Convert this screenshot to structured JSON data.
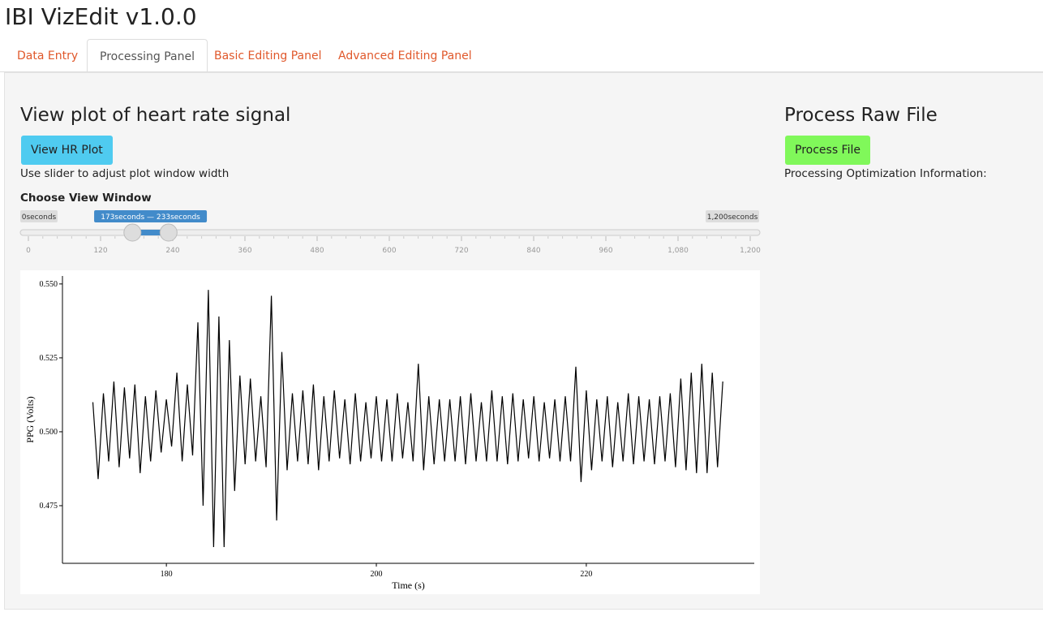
{
  "header": {
    "title": "IBI VizEdit v1.0.0"
  },
  "tabs": {
    "items": [
      "Data Entry",
      "Processing Panel",
      "Basic Editing Panel",
      "Advanced Editing Panel"
    ],
    "active": 1
  },
  "left": {
    "heading": "View plot of heart rate signal",
    "button": "View HR Plot",
    "hint": "Use slider to adjust plot window width"
  },
  "slider": {
    "label": "Choose View Window",
    "min_label": "0seconds",
    "max_label": "1,200seconds",
    "value_label": "173seconds — 233seconds",
    "min": 0,
    "max": 1200,
    "from": 173,
    "to": 233,
    "ticks": [
      0,
      120,
      240,
      360,
      480,
      600,
      720,
      840,
      960,
      {
        "value": 1080,
        "label": "1,080"
      },
      {
        "value": 1200,
        "label": "1,200"
      }
    ]
  },
  "right": {
    "heading": "Process Raw File",
    "button": "Process File",
    "info": "Processing Optimization Information:"
  },
  "chart_data": {
    "type": "line",
    "x_label": "Time (s)",
    "y_label": "PPG (Volts)",
    "color": "#000000",
    "xlim": [
      170.1,
      236
    ],
    "ylim": [
      0.4555,
      0.5527
    ],
    "xticks": [
      180,
      200,
      220
    ],
    "yticks": [
      {
        "value": 0.55,
        "label": "0.550"
      },
      0.525,
      {
        "value": 0.5,
        "label": "0.500"
      },
      0.475
    ],
    "x": [
      173,
      173.5,
      174,
      174.5,
      175,
      175.5,
      176,
      176.5,
      177,
      177.5,
      178,
      178.5,
      179,
      179.5,
      180,
      180.5,
      181,
      181.5,
      182,
      182.5,
      183,
      183.5,
      184,
      184.5,
      185,
      185.5,
      186,
      186.5,
      187,
      187.5,
      188,
      188.5,
      189,
      189.5,
      190,
      190.5,
      191,
      191.5,
      192,
      192.5,
      193,
      193.5,
      194,
      194.5,
      195,
      195.5,
      196,
      196.5,
      197,
      197.5,
      198,
      198.5,
      199,
      199.5,
      200,
      200.5,
      201,
      201.5,
      202,
      202.5,
      203,
      203.5,
      204,
      204.5,
      205,
      205.5,
      206,
      206.5,
      207,
      207.5,
      208,
      208.5,
      209,
      209.5,
      210,
      210.5,
      211,
      211.5,
      212,
      212.5,
      213,
      213.5,
      214,
      214.5,
      215,
      215.5,
      216,
      216.5,
      217,
      217.5,
      218,
      218.5,
      219,
      219.5,
      220,
      220.5,
      221,
      221.5,
      222,
      222.5,
      223,
      223.5,
      224,
      224.5,
      225,
      225.5,
      226,
      226.5,
      227,
      227.5,
      228,
      228.5,
      229,
      229.5,
      230,
      230.5,
      231,
      231.5,
      232,
      232.5,
      233
    ],
    "values": [
      0.51,
      0.484,
      0.513,
      0.49,
      0.517,
      0.488,
      0.515,
      0.491,
      0.516,
      0.486,
      0.512,
      0.49,
      0.514,
      0.493,
      0.511,
      0.495,
      0.52,
      0.49,
      0.516,
      0.492,
      0.537,
      0.475,
      0.548,
      0.461,
      0.539,
      0.461,
      0.531,
      0.48,
      0.519,
      0.489,
      0.518,
      0.49,
      0.512,
      0.488,
      0.546,
      0.47,
      0.527,
      0.487,
      0.513,
      0.49,
      0.514,
      0.489,
      0.516,
      0.487,
      0.512,
      0.49,
      0.514,
      0.491,
      0.511,
      0.489,
      0.513,
      0.49,
      0.51,
      0.491,
      0.512,
      0.49,
      0.511,
      0.49,
      0.513,
      0.491,
      0.51,
      0.49,
      0.523,
      0.487,
      0.512,
      0.489,
      0.511,
      0.49,
      0.511,
      0.49,
      0.512,
      0.489,
      0.513,
      0.49,
      0.51,
      0.49,
      0.514,
      0.49,
      0.512,
      0.489,
      0.513,
      0.49,
      0.511,
      0.491,
      0.512,
      0.49,
      0.51,
      0.491,
      0.511,
      0.49,
      0.512,
      0.49,
      0.522,
      0.483,
      0.514,
      0.487,
      0.511,
      0.49,
      0.512,
      0.488,
      0.51,
      0.49,
      0.513,
      0.489,
      0.512,
      0.49,
      0.511,
      0.489,
      0.512,
      0.49,
      0.513,
      0.488,
      0.518,
      0.487,
      0.52,
      0.486,
      0.523,
      0.486,
      0.52,
      0.488,
      0.517
    ]
  }
}
